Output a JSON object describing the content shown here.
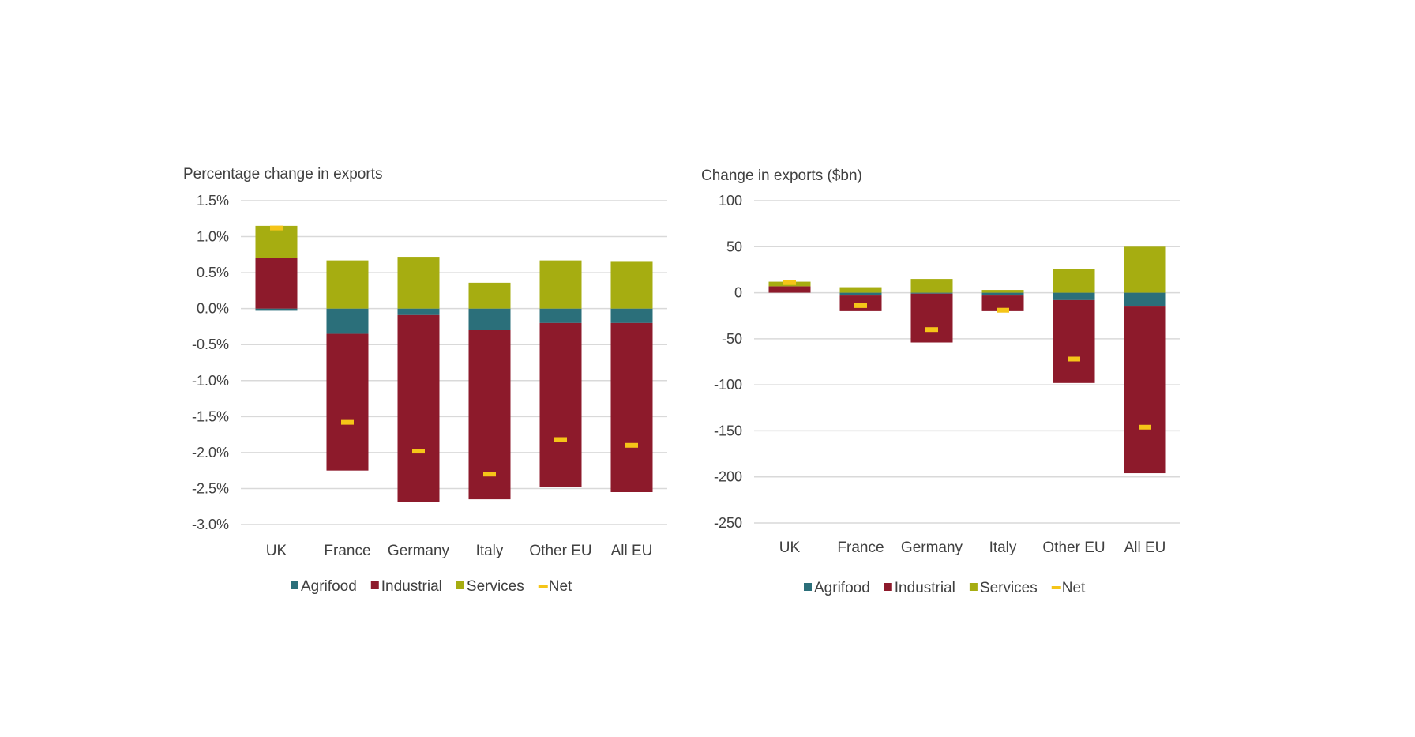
{
  "colors": {
    "agrifood": "#2b6f7a",
    "industrial": "#8d1a2b",
    "services": "#a6ad11",
    "net": "#f5c518",
    "grid": "#d9d9d9",
    "text": "#404040"
  },
  "chart_data": [
    {
      "type": "bar",
      "stacked": true,
      "title": "Percentage change in exports",
      "xlabel": "",
      "ylabel": "",
      "ylim": [
        -3.0,
        1.5
      ],
      "yticks": [
        1.5,
        1.0,
        0.5,
        0.0,
        -0.5,
        -1.0,
        -1.5,
        -2.0,
        -2.5,
        -3.0
      ],
      "ytick_labels": [
        "1.5%",
        "1.0%",
        "0.5%",
        "0.0%",
        "-0.5%",
        "-1.0%",
        "-1.5%",
        "-2.0%",
        "-2.5%",
        "-3.0%"
      ],
      "grid": true,
      "legend_position": "bottom",
      "categories": [
        "UK",
        "France",
        "Germany",
        "Italy",
        "Other EU",
        "All EU"
      ],
      "series": [
        {
          "name": "Agrifood",
          "values": [
            -0.03,
            -0.35,
            -0.09,
            -0.3,
            -0.2,
            -0.2
          ]
        },
        {
          "name": "Industrial",
          "values": [
            0.7,
            -1.9,
            -2.6,
            -2.35,
            -2.28,
            -2.35
          ]
        },
        {
          "name": "Services",
          "values": [
            0.45,
            0.67,
            0.72,
            0.36,
            0.67,
            0.65
          ]
        },
        {
          "name": "Net",
          "kind": "marker",
          "values": [
            1.12,
            -1.58,
            -1.98,
            -2.3,
            -1.82,
            -1.9
          ]
        }
      ]
    },
    {
      "type": "bar",
      "stacked": true,
      "title": "Change in exports ($bn)",
      "xlabel": "",
      "ylabel": "",
      "ylim": [
        -250,
        100
      ],
      "yticks": [
        100,
        50,
        0,
        -50,
        -100,
        -150,
        -200,
        -250
      ],
      "ytick_labels": [
        "100",
        "50",
        "0",
        "-50",
        "-100",
        "-150",
        "-200",
        "-250"
      ],
      "grid": true,
      "legend_position": "bottom",
      "categories": [
        "UK",
        "France",
        "Germany",
        "Italy",
        "Other EU",
        "All EU"
      ],
      "series": [
        {
          "name": "Agrifood",
          "values": [
            0,
            -3,
            -1,
            -3,
            -8,
            -15
          ]
        },
        {
          "name": "Industrial",
          "values": [
            7,
            -17,
            -53,
            -17,
            -90,
            -181
          ]
        },
        {
          "name": "Services",
          "values": [
            5,
            6,
            15,
            3,
            26,
            50
          ]
        },
        {
          "name": "Net",
          "kind": "marker",
          "values": [
            11,
            -14,
            -40,
            -19,
            -72,
            -146
          ]
        }
      ]
    }
  ]
}
